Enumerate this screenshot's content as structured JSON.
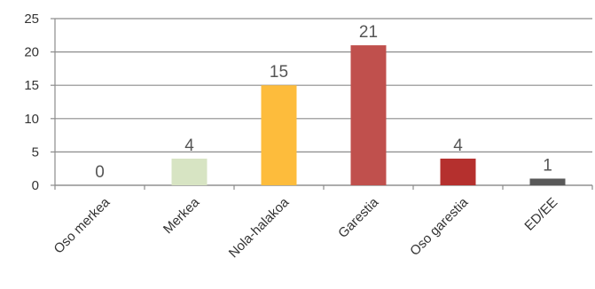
{
  "chart_data": {
    "type": "bar",
    "title": "",
    "xlabel": "",
    "ylabel": "",
    "categories": [
      "Oso merkea",
      "Merkea",
      "Nola-halakoa",
      "Garestia",
      "Oso garestia",
      "ED/EE"
    ],
    "values": [
      0,
      4,
      15,
      21,
      4,
      1
    ],
    "data_labels": [
      "0",
      "4",
      "15",
      "21",
      "4",
      "1"
    ],
    "y_ticks": [
      "0",
      "5",
      "10",
      "15",
      "20",
      "25"
    ],
    "ylim": [
      0,
      25
    ],
    "grid": true,
    "legend": "none",
    "colors": [
      "#9dc07a",
      "#d7e4c3",
      "#fdbc3c",
      "#c0504d",
      "#b5302e",
      "#595959"
    ]
  }
}
